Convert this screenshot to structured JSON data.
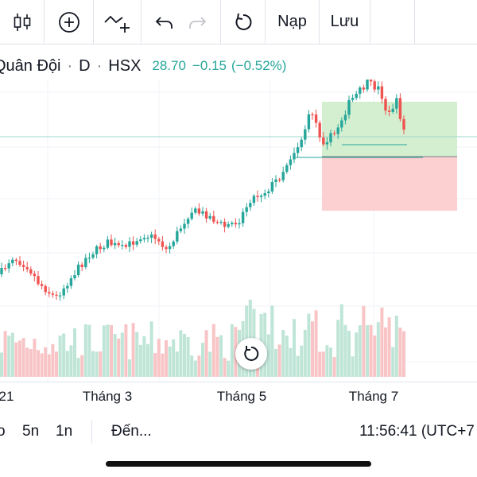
{
  "toolbar": {
    "reload_label": "Nạp",
    "save_label": "Lưu"
  },
  "symbol": {
    "name": "Quân Đội",
    "separator": "·",
    "interval": "D",
    "exchange": "HSX",
    "last": "28.70",
    "change": "−0.15",
    "change_pct": "(−0.52%)"
  },
  "x_axis": {
    "labels": [
      "21",
      "Tháng 3",
      "Tháng 5",
      "Tháng 7"
    ]
  },
  "bottom_bar": {
    "range_items": [
      "o",
      "5n",
      "1n"
    ],
    "goto_label": "Đến...",
    "clock": "11:56:41 (UTC+7"
  },
  "colors": {
    "up": "#26a69a",
    "down": "#ef5350",
    "vol_up": "#bfe5d7",
    "vol_down": "#f8c4c6",
    "profit_zone": "#d4efd0",
    "loss_zone": "#fccfd1"
  },
  "icons": [
    "candles-icon",
    "add-indicator-icon",
    "compare-icon",
    "undo-icon",
    "redo-icon",
    "reload-icon",
    "reset-chart-icon"
  ]
}
